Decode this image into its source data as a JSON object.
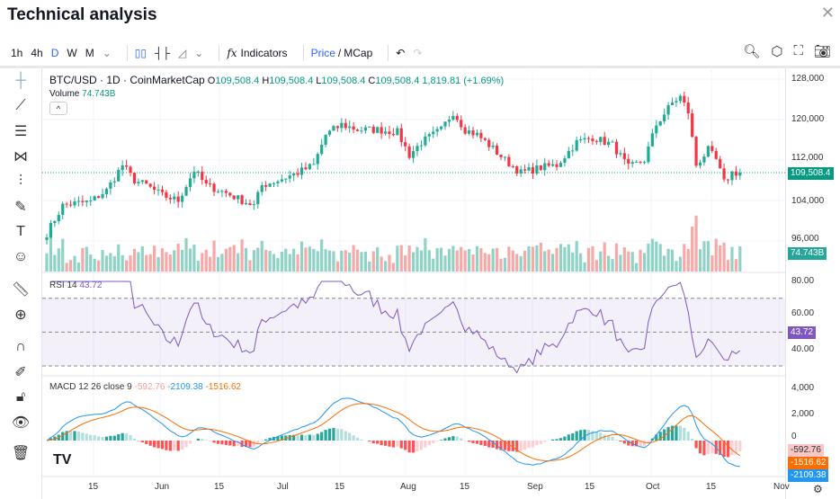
{
  "title": "Technical analysis",
  "toolbar": {
    "intervals": [
      "1h",
      "4h",
      "D",
      "W",
      "M"
    ],
    "active_interval": "D",
    "indicators": "Indicators",
    "price": "Price",
    "mcap": "MCap",
    "slash": "/"
  },
  "legend": {
    "symbol": "BTC/USD · 1D · CoinMarketCap",
    "o_label": "O",
    "o": "109,508.4",
    "h_label": "H",
    "h": "109,508.4",
    "l_label": "L",
    "l": "109,508.4",
    "c_label": "C",
    "c": "109,508.4",
    "change": "1,819.81 (+1.69%)",
    "volume_label": "Volume",
    "volume": "74.743B"
  },
  "rsi": {
    "label": "RSI",
    "period": "14",
    "value": "43.72"
  },
  "macd": {
    "label": "MACD",
    "params": "12 26 close 9",
    "hist": "-592.76",
    "macd": "-2109.38",
    "signal": "-1516.62"
  },
  "price_axis": [
    "128,000",
    "120,000",
    "112,000",
    "104,000",
    "96,000"
  ],
  "price_tag": "109,508.4",
  "volume_tag": "74.743B",
  "rsi_axis": [
    "80.00",
    "60.00",
    "40.00"
  ],
  "macd_axis": [
    "4,000",
    "2,000",
    "0"
  ],
  "time_axis": [
    "15",
    "Jun",
    "15",
    "Jul",
    "15",
    "Aug",
    "15",
    "Sep",
    "15",
    "Oct",
    "15",
    "Nov"
  ],
  "colors": {
    "up": "#22ab94",
    "down": "#f23645",
    "rsi": "#7e57c2",
    "macd": "#2196f3",
    "signal": "#ff6d00"
  },
  "chart_data": {
    "type": "candlestick",
    "title": "BTC/USD 1D",
    "ylim": [
      94000,
      130000
    ],
    "last_close": 109508.4,
    "close_keypoints": [
      [
        0,
        97500
      ],
      [
        4,
        103000
      ],
      [
        6,
        103300
      ],
      [
        11,
        103800
      ],
      [
        15,
        106000
      ],
      [
        19,
        111000
      ],
      [
        22,
        108000
      ],
      [
        25,
        107000
      ],
      [
        29,
        105000
      ],
      [
        33,
        104000
      ],
      [
        37,
        110000
      ],
      [
        40,
        107000
      ],
      [
        45,
        105500
      ],
      [
        49,
        104000
      ],
      [
        52,
        103000
      ],
      [
        54,
        107000
      ],
      [
        58,
        108000
      ],
      [
        63,
        109500
      ],
      [
        67,
        111000
      ],
      [
        70,
        117000
      ],
      [
        74,
        119000
      ],
      [
        78,
        118000
      ],
      [
        83,
        118000
      ],
      [
        88,
        117500
      ],
      [
        91,
        113000
      ],
      [
        94,
        115500
      ],
      [
        99,
        118000
      ],
      [
        102,
        121500
      ],
      [
        105,
        118000
      ],
      [
        108,
        117000
      ],
      [
        111,
        115000
      ],
      [
        115,
        112000
      ],
      [
        119,
        109500
      ],
      [
        124,
        110500
      ],
      [
        128,
        111000
      ],
      [
        133,
        115500
      ],
      [
        137,
        116500
      ],
      [
        142,
        115000
      ],
      [
        146,
        110500
      ],
      [
        150,
        112000
      ],
      [
        153,
        119000
      ],
      [
        157,
        123300
      ],
      [
        159,
        124500
      ],
      [
        161,
        121500
      ],
      [
        163,
        111000
      ],
      [
        166,
        114000
      ],
      [
        168,
        112000
      ],
      [
        170,
        107500
      ],
      [
        172,
        109500
      ],
      [
        174,
        109508
      ]
    ]
  }
}
